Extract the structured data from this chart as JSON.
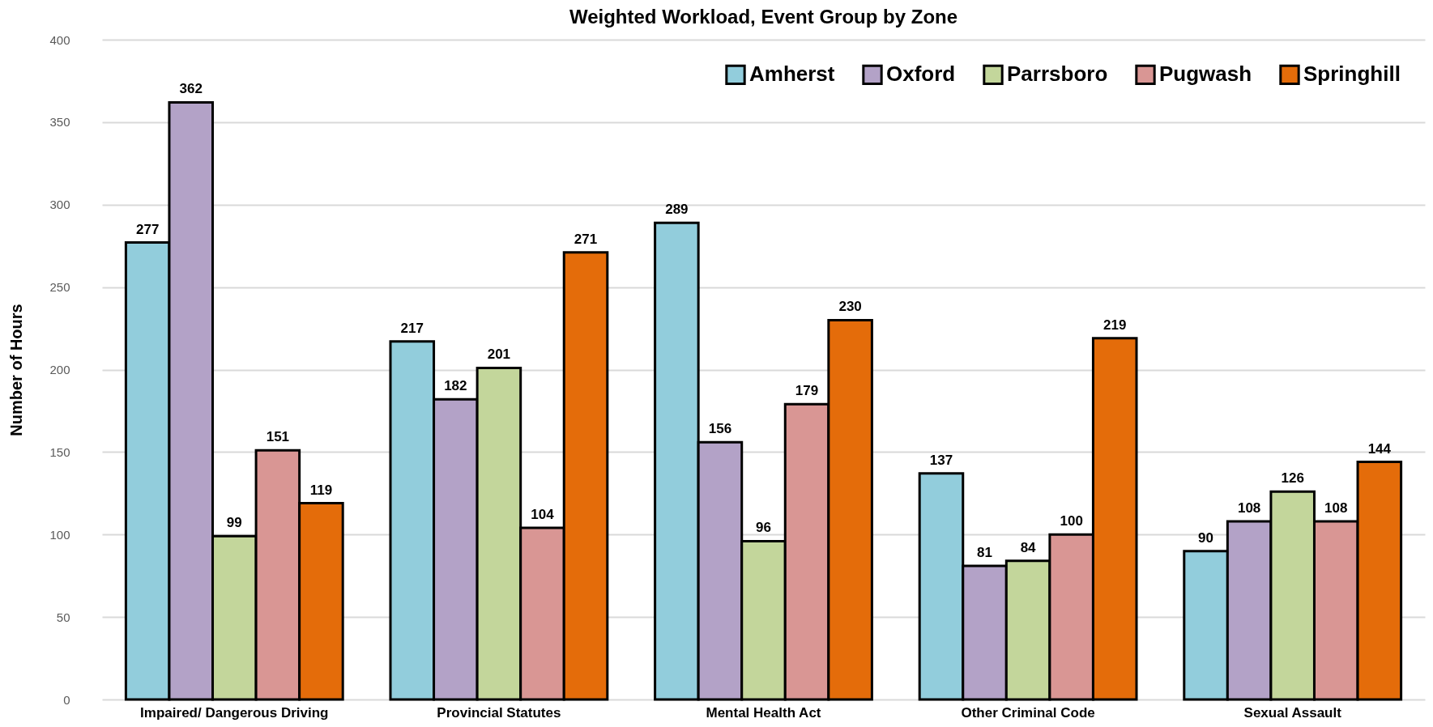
{
  "chart_data": {
    "type": "bar",
    "title": "Weighted Workload, Event Group by Zone",
    "ylabel": "Number of Hours",
    "categories": [
      "Impaired/ Dangerous Driving",
      "Provincial Statutes",
      "Mental Health Act",
      "Other Criminal Code",
      "Sexual Assault"
    ],
    "series": [
      {
        "name": "Amherst",
        "color": "#92cddc",
        "values": [
          277,
          217,
          289,
          137,
          90
        ]
      },
      {
        "name": "Oxford",
        "color": "#b3a2c7",
        "values": [
          362,
          182,
          156,
          81,
          108
        ]
      },
      {
        "name": "Parrsboro",
        "color": "#c3d69b",
        "values": [
          99,
          201,
          96,
          84,
          126
        ]
      },
      {
        "name": "Pugwash",
        "color": "#d99694",
        "values": [
          151,
          104,
          179,
          100,
          108
        ]
      },
      {
        "name": "Springhill",
        "color": "#e46c0a",
        "values": [
          119,
          271,
          230,
          219,
          144
        ]
      }
    ],
    "ylim": [
      0,
      400
    ],
    "yticks": [
      0,
      50,
      100,
      150,
      200,
      250,
      300,
      350,
      400
    ],
    "grid": "y",
    "legend": "top right",
    "data_labels": true
  }
}
